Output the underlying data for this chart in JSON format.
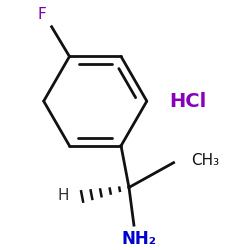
{
  "background_color": "#ffffff",
  "F_color": "#7700aa",
  "HCl_color": "#8800bb",
  "NH2_color": "#0000cc",
  "bond_color": "#111111",
  "H_color": "#333333",
  "CH3_color": "#111111",
  "F_label": "F",
  "HCl_label": "HCl",
  "NH2_label": "NH₂",
  "H_label": "H",
  "CH3_label": "CH₃",
  "font_size_F": 11,
  "font_size_HCl": 14,
  "font_size_NH2": 12,
  "font_size_H": 11,
  "font_size_CH3": 11,
  "figsize": [
    2.5,
    2.5
  ],
  "dpi": 100
}
